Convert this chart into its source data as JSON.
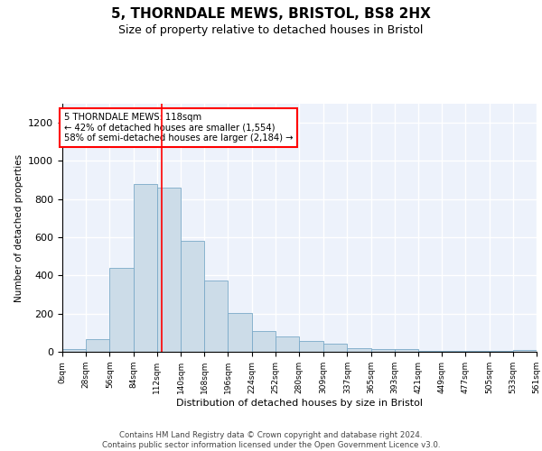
{
  "title": "5, THORNDALE MEWS, BRISTOL, BS8 2HX",
  "subtitle": "Size of property relative to detached houses in Bristol",
  "xlabel": "Distribution of detached houses by size in Bristol",
  "ylabel": "Number of detached properties",
  "bar_color": "#ccdce8",
  "bar_edge_color": "#7aaac8",
  "background_color": "#edf2fb",
  "grid_color": "white",
  "vline_x": 118,
  "vline_color": "red",
  "bin_edges": [
    0,
    28,
    56,
    84,
    112,
    140,
    168,
    196,
    224,
    252,
    280,
    309,
    337,
    365,
    393,
    421,
    449,
    477,
    505,
    533,
    561
  ],
  "bar_heights": [
    12,
    65,
    440,
    880,
    860,
    580,
    375,
    205,
    110,
    80,
    55,
    42,
    20,
    16,
    14,
    5,
    6,
    5,
    5,
    10
  ],
  "xlim": [
    0,
    561
  ],
  "ylim": [
    0,
    1300
  ],
  "yticks": [
    0,
    200,
    400,
    600,
    800,
    1000,
    1200
  ],
  "annotation_text": "5 THORNDALE MEWS: 118sqm\n← 42% of detached houses are smaller (1,554)\n58% of semi-detached houses are larger (2,184) →",
  "footer_text": "Contains HM Land Registry data © Crown copyright and database right 2024.\nContains public sector information licensed under the Open Government Licence v3.0.",
  "tick_labels": [
    "0sqm",
    "28sqm",
    "56sqm",
    "84sqm",
    "112sqm",
    "140sqm",
    "168sqm",
    "196sqm",
    "224sqm",
    "252sqm",
    "280sqm",
    "309sqm",
    "337sqm",
    "365sqm",
    "393sqm",
    "421sqm",
    "449sqm",
    "477sqm",
    "505sqm",
    "533sqm",
    "561sqm"
  ]
}
